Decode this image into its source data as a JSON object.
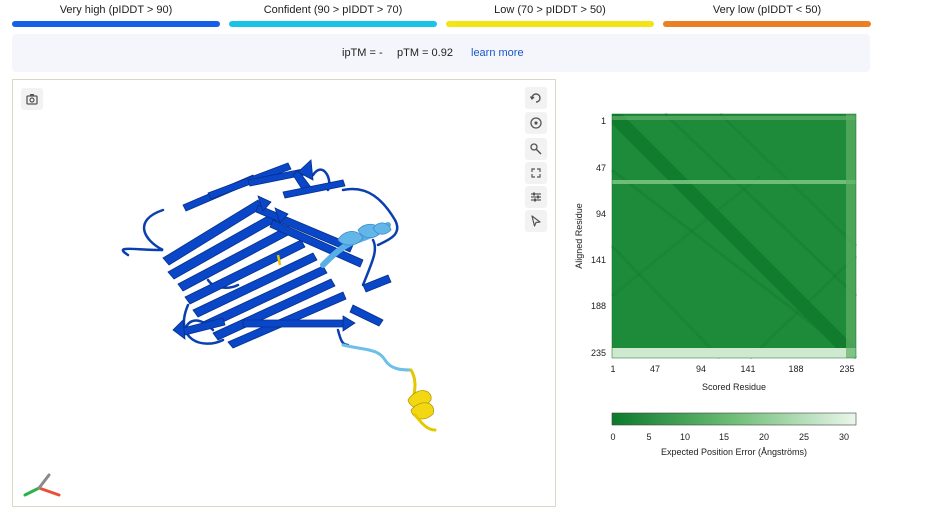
{
  "legend": {
    "items": [
      {
        "label": "Very high (pIDDT > 90)",
        "color": "#1560e8"
      },
      {
        "label": "Confident (90 > pIDDT > 70)",
        "color": "#19c4e8"
      },
      {
        "label": "Low (70 > pIDDT > 50)",
        "color": "#f2e515"
      },
      {
        "label": "Very low (pIDDT < 50)",
        "color": "#eb7f24"
      }
    ]
  },
  "scores": {
    "iptm": "ipTM = -",
    "ptm": "pTM = 0.92",
    "learn_more": "learn more"
  },
  "viewer": {
    "toolbar": [
      "screenshot-icon",
      "reset-view-icon",
      "spin-icon",
      "measure-icon",
      "fullscreen-icon",
      "settings-icon",
      "select-icon"
    ]
  },
  "pae": {
    "y_ticks": [
      "1",
      "47",
      "94",
      "141",
      "188",
      "235"
    ],
    "x_ticks": [
      "1",
      "47",
      "94",
      "141",
      "188",
      "235"
    ],
    "y_label": "Aligned Residue",
    "x_label": "Scored Residue",
    "scale_ticks": [
      "0",
      "5",
      "10",
      "15",
      "20",
      "25",
      "30"
    ],
    "scale_label": "Expected Position Error (Ångströms)",
    "colors": {
      "low": "#0b7a2a",
      "high": "#eaf6ea"
    }
  }
}
